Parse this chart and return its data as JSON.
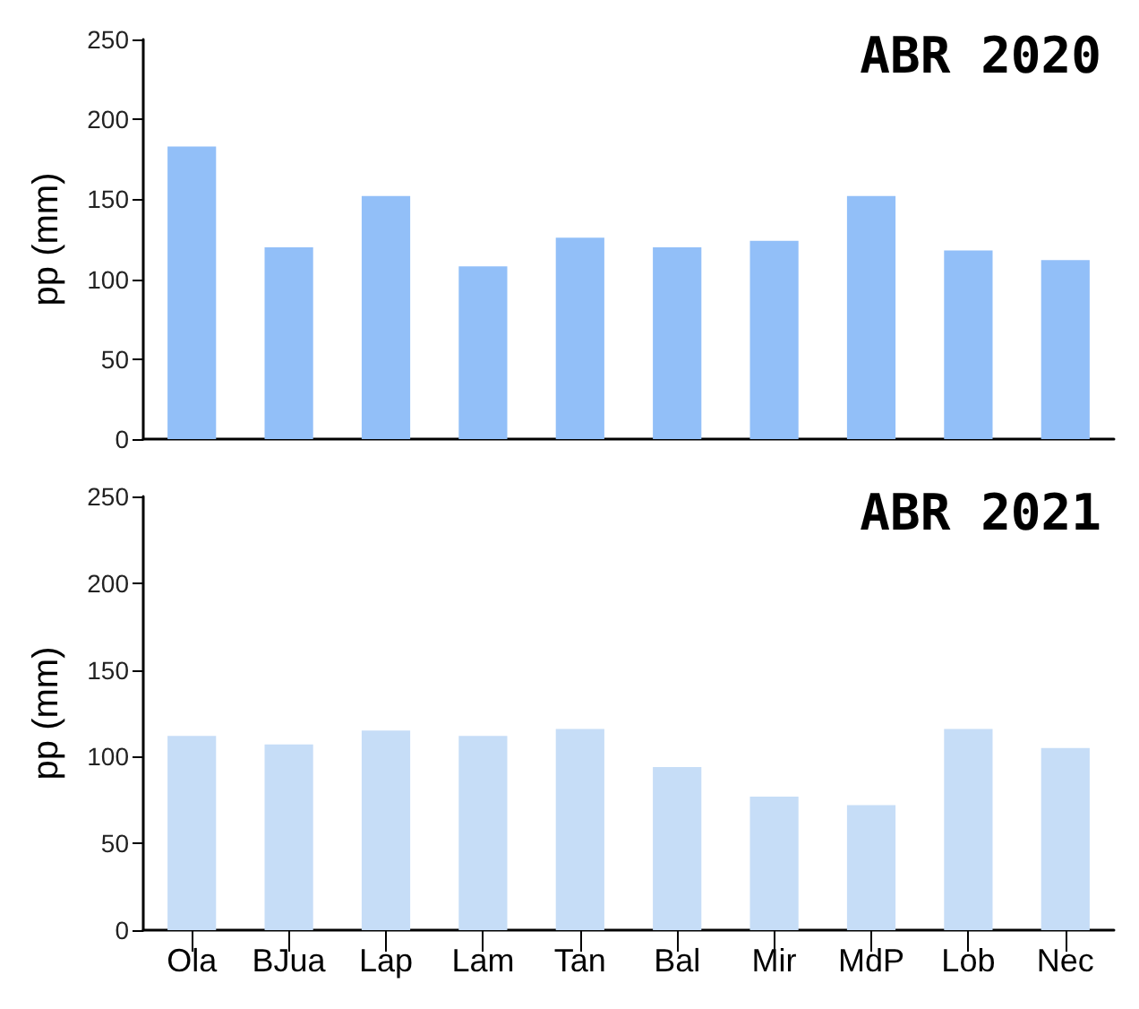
{
  "chart_data": [
    {
      "type": "bar",
      "title": "ABR 2020",
      "ylabel": "pp (mm)",
      "categories": [
        null,
        null,
        null,
        null,
        null,
        null,
        null,
        null,
        null,
        null
      ],
      "values": [
        183,
        120,
        152,
        108,
        126,
        120,
        124,
        152,
        118,
        112
      ],
      "color": "#92bff8",
      "ylim": [
        0,
        250
      ],
      "yticks": [
        0,
        50,
        100,
        150,
        200,
        250
      ],
      "grid": false,
      "tick_labels": "y"
    },
    {
      "type": "bar",
      "title": "ABR 2021",
      "ylabel": "pp (mm)",
      "categories": [
        "Ola",
        "BJua",
        "Lap",
        "Lam",
        "Tan",
        "Bal",
        "Mir",
        "MdP",
        "Lob",
        "Nec"
      ],
      "values": [
        112,
        107,
        115,
        112,
        116,
        94,
        77,
        72,
        116,
        105
      ],
      "color": "#c6ddf7",
      "ylim": [
        0,
        250
      ],
      "yticks": [
        0,
        50,
        100,
        150,
        200,
        250
      ],
      "grid": false
    }
  ]
}
